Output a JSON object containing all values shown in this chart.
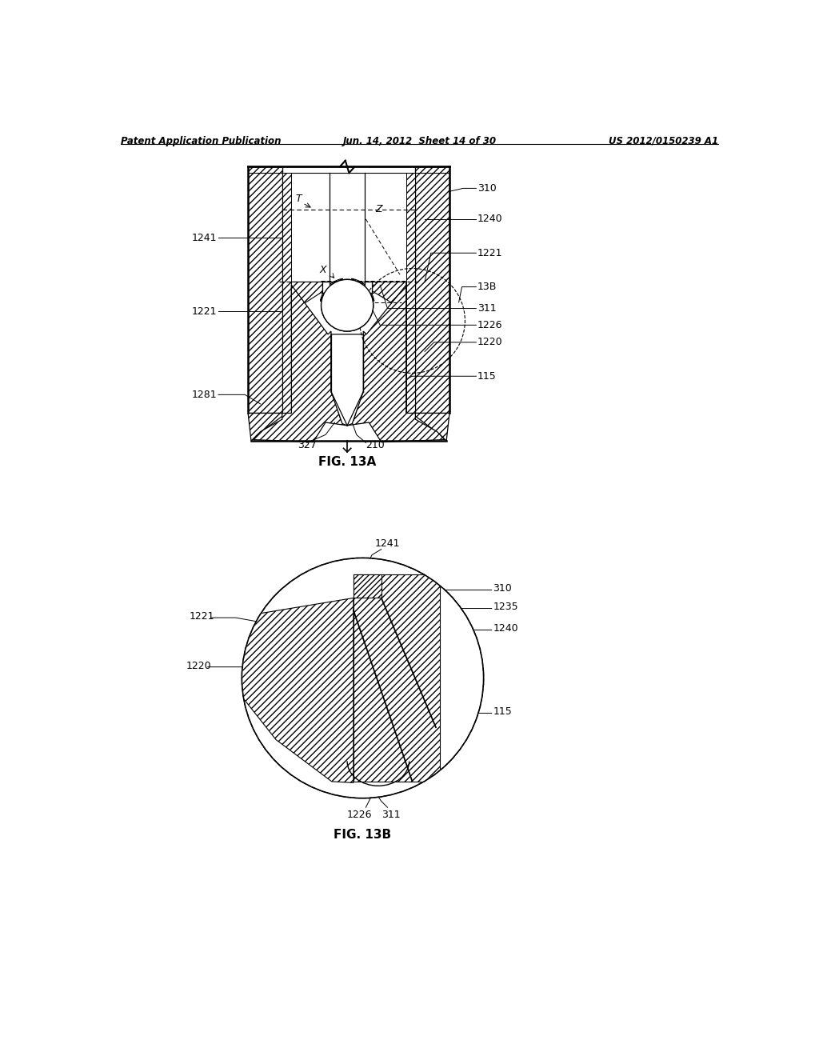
{
  "header_left": "Patent Application Publication",
  "header_mid": "Jun. 14, 2012  Sheet 14 of 30",
  "header_right": "US 2012/0150239 A1",
  "fig13a_caption": "FIG. 13A",
  "fig13b_caption": "FIG. 13B",
  "bg_color": "#ffffff",
  "line_color": "#000000",
  "label_fontsize": 9,
  "header_fontsize": 8.5,
  "caption_fontsize": 11
}
